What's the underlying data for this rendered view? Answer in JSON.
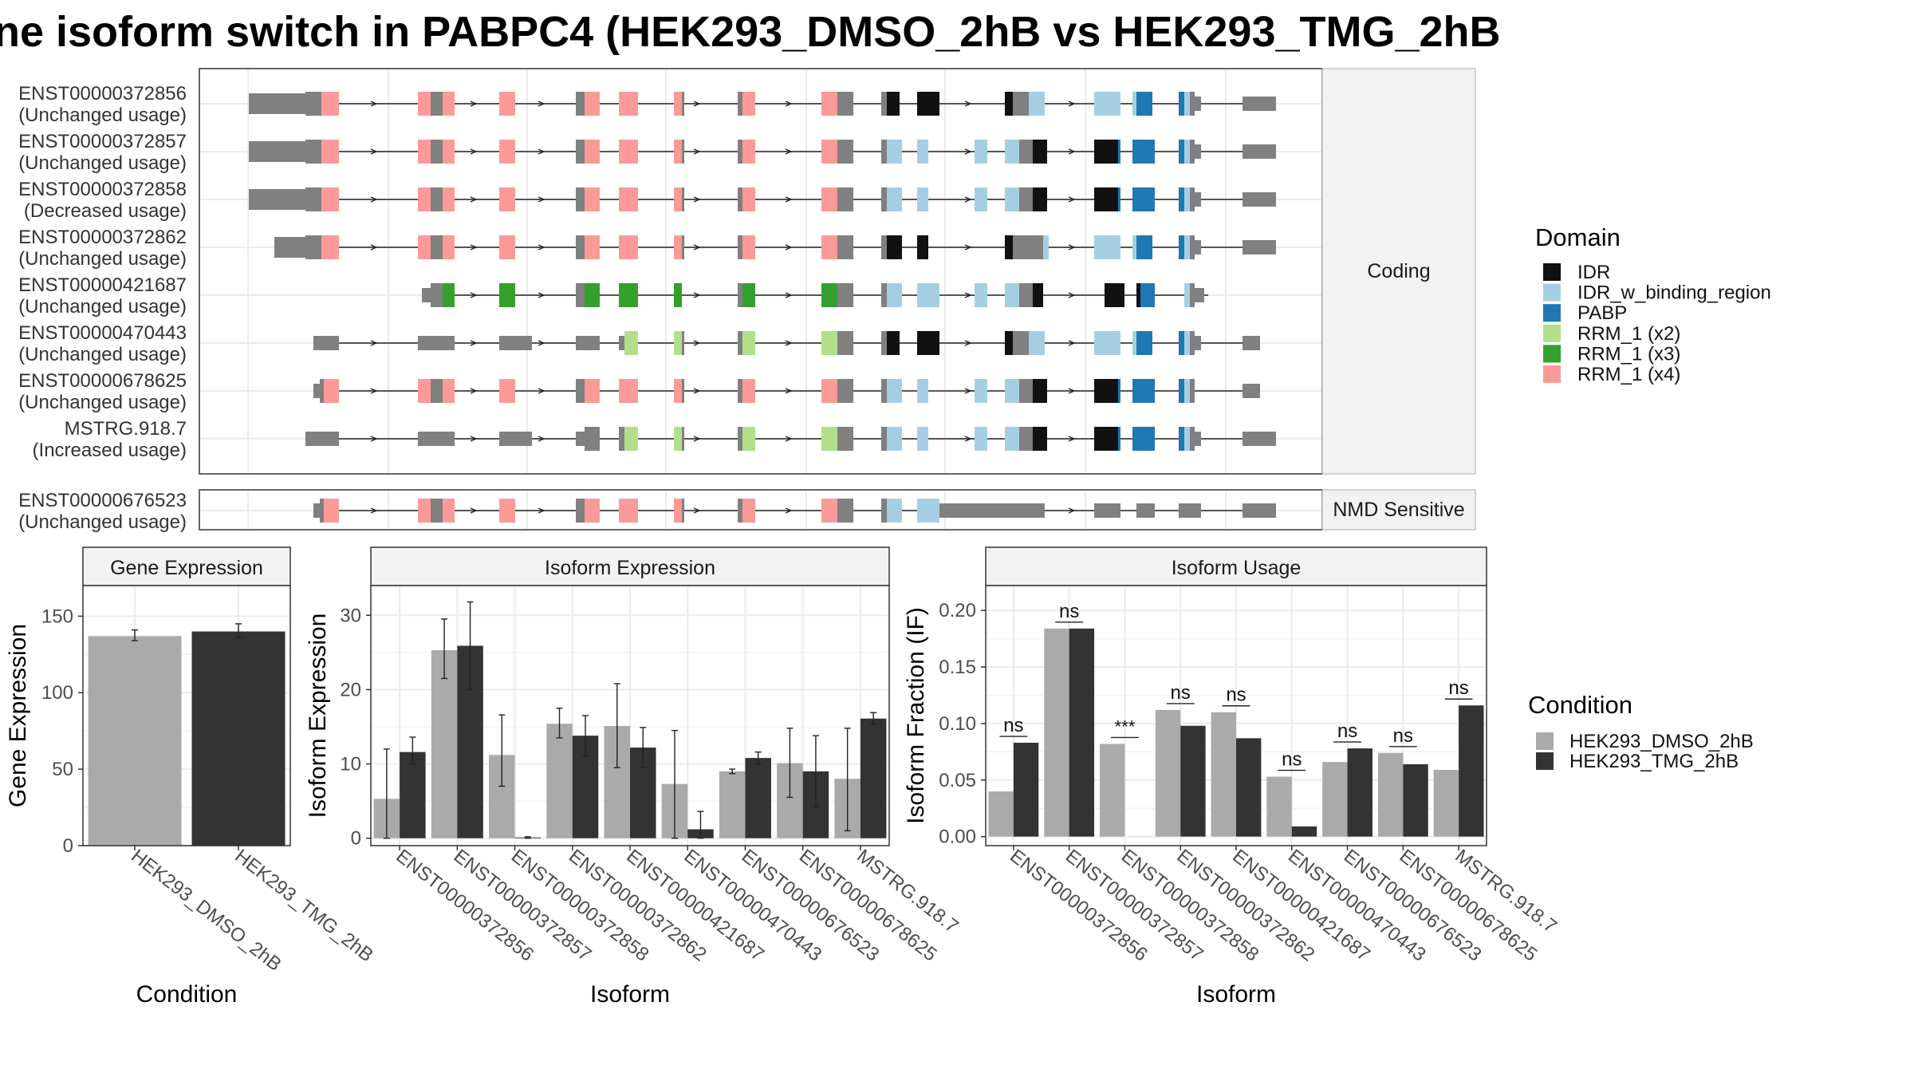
{
  "title": "ne isoform switch in PABPC4 (HEK293_DMSO_2hB vs HEK293_TMG_2hB",
  "colors": {
    "idr": "#111111",
    "idr_w_binding_region": "#a6cee3",
    "pabp": "#1f78b4",
    "rrm1_x2": "#b2df8a",
    "rrm1_x3": "#33a02c",
    "rrm1_x4": "#fb9a99",
    "exon_grey": "#808080",
    "dmso": "#aaaaaa",
    "tmg": "#333333",
    "strip_bg": "#f2f2f2",
    "grid": "#ebebeb"
  },
  "structure": {
    "coding_facet_label": "Coding",
    "nmd_facet_label": "NMD Sensitive",
    "transcripts": [
      {
        "id": "ENST00000372856",
        "usage": "(Unchanged usage)",
        "group": "coding"
      },
      {
        "id": "ENST00000372857",
        "usage": "(Unchanged usage)",
        "group": "coding"
      },
      {
        "id": "ENST00000372858",
        "usage": "(Decreased usage)",
        "group": "coding"
      },
      {
        "id": "ENST00000372862",
        "usage": "(Unchanged usage)",
        "group": "coding"
      },
      {
        "id": "ENST00000421687",
        "usage": "(Unchanged usage)",
        "group": "coding"
      },
      {
        "id": "ENST00000470443",
        "usage": "(Unchanged usage)",
        "group": "coding"
      },
      {
        "id": "ENST00000678625",
        "usage": "(Unchanged usage)",
        "group": "coding"
      },
      {
        "id": "MSTRG.918.7",
        "usage": "(Increased usage)",
        "group": "coding"
      },
      {
        "id": "ENST00000676523",
        "usage": "(Unchanged usage)",
        "group": "nmd"
      }
    ]
  },
  "domain_legend": {
    "title": "Domain",
    "items": [
      {
        "label": "IDR",
        "color": "#111111"
      },
      {
        "label": "IDR_w_binding_region",
        "color": "#a6cee3"
      },
      {
        "label": "PABP",
        "color": "#1f78b4"
      },
      {
        "label": "RRM_1 (x2)",
        "color": "#b2df8a"
      },
      {
        "label": "RRM_1 (x3)",
        "color": "#33a02c"
      },
      {
        "label": "RRM_1 (x4)",
        "color": "#fb9a99"
      }
    ]
  },
  "condition_legend": {
    "title": "Condition",
    "items": [
      {
        "label": "HEK293_DMSO_2hB",
        "color": "#aaaaaa"
      },
      {
        "label": "HEK293_TMG_2hB",
        "color": "#333333"
      }
    ]
  },
  "chart_data": [
    {
      "type": "bar",
      "title": "Gene Expression",
      "xlabel": "Condition",
      "ylabel": "Gene Expression",
      "ylim": [
        0,
        170
      ],
      "yticks": [
        0,
        50,
        100,
        150
      ],
      "categories": [
        "HEK293_DMSO_2hB",
        "HEK293_TMG_2hB"
      ],
      "values": [
        137,
        140
      ],
      "error_low": [
        134,
        136
      ],
      "error_high": [
        141,
        145
      ]
    },
    {
      "type": "bar",
      "title": "Isoform Expression",
      "xlabel": "Isoform",
      "ylabel": "Isoform Expression",
      "ylim": [
        -1,
        34
      ],
      "yticks": [
        0,
        10,
        20,
        30
      ],
      "categories": [
        "ENST00000372856",
        "ENST00000372857",
        "ENST00000372858",
        "ENST00000372862",
        "ENST00000421687",
        "ENST00000470443",
        "ENST00000676523",
        "ENST00000678625",
        "MSTRG.918.7"
      ],
      "series": [
        {
          "name": "HEK293_DMSO_2hB",
          "values": [
            5.3,
            25.3,
            11.2,
            15.4,
            15.1,
            7.3,
            9.0,
            10.1,
            8.0
          ],
          "error_low": [
            0.0,
            21.5,
            7.0,
            13.5,
            9.5,
            0.0,
            8.7,
            5.5,
            1.0
          ],
          "error_high": [
            12.0,
            29.5,
            16.6,
            17.5,
            20.8,
            14.5,
            9.3,
            14.8,
            14.8
          ]
        },
        {
          "name": "HEK293_TMG_2hB",
          "values": [
            11.6,
            25.9,
            0.1,
            13.8,
            12.2,
            1.2,
            10.8,
            9.0,
            16.1
          ],
          "error_low": [
            10.0,
            20.0,
            0.0,
            11.0,
            9.5,
            0.0,
            10.0,
            4.2,
            15.3
          ],
          "error_high": [
            13.6,
            31.8,
            0.2,
            16.5,
            14.9,
            3.6,
            11.6,
            13.8,
            16.9
          ]
        }
      ]
    },
    {
      "type": "bar",
      "title": "Isoform Usage",
      "xlabel": "Isoform",
      "ylabel": "Isoform Fraction (IF)",
      "ylim": [
        -0.008,
        0.222
      ],
      "yticks": [
        0.0,
        0.05,
        0.1,
        0.15,
        0.2
      ],
      "ytick_labels": [
        "0.00",
        "0.05",
        "0.10",
        "0.15",
        "0.20"
      ],
      "categories": [
        "ENST00000372856",
        "ENST00000372857",
        "ENST00000372858",
        "ENST00000372862",
        "ENST00000421687",
        "ENST00000470443",
        "ENST00000676523",
        "ENST00000678625",
        "MSTRG.918.7"
      ],
      "series": [
        {
          "name": "HEK293_DMSO_2hB",
          "values": [
            0.04,
            0.184,
            0.082,
            0.112,
            0.11,
            0.053,
            0.066,
            0.074,
            0.059
          ]
        },
        {
          "name": "HEK293_TMG_2hB",
          "values": [
            0.083,
            0.184,
            0.0,
            0.098,
            0.087,
            0.009,
            0.078,
            0.064,
            0.116
          ]
        }
      ],
      "significance": [
        "ns",
        "ns",
        "***",
        "ns",
        "ns",
        "ns",
        "ns",
        "ns",
        "ns"
      ]
    }
  ]
}
